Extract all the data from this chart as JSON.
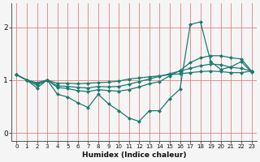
{
  "xlabel": "Humidex (Indice chaleur)",
  "background_color": "#f5f5f5",
  "grid_color": "#e08080",
  "line_color": "#1a7a6e",
  "x_values": [
    0,
    1,
    2,
    3,
    4,
    5,
    6,
    7,
    8,
    9,
    10,
    11,
    12,
    13,
    14,
    15,
    16,
    17,
    18,
    19,
    20,
    21,
    22,
    23
  ],
  "line1": [
    1.1,
    1.0,
    0.85,
    1.0,
    0.73,
    0.68,
    0.57,
    0.48,
    0.73,
    0.55,
    0.42,
    0.28,
    0.22,
    0.42,
    0.42,
    0.65,
    0.83,
    2.05,
    2.1,
    1.35,
    1.2,
    1.25,
    1.35,
    1.15
  ],
  "line2": [
    1.1,
    1.0,
    0.9,
    1.0,
    0.86,
    0.84,
    0.8,
    0.78,
    0.82,
    0.8,
    0.79,
    0.82,
    0.87,
    0.93,
    0.97,
    1.08,
    1.18,
    1.33,
    1.42,
    1.46,
    1.46,
    1.42,
    1.4,
    1.17
  ],
  "line3": [
    1.1,
    1.0,
    0.93,
    1.0,
    0.89,
    0.88,
    0.86,
    0.85,
    0.88,
    0.87,
    0.88,
    0.92,
    0.97,
    1.02,
    1.07,
    1.12,
    1.17,
    1.22,
    1.27,
    1.3,
    1.29,
    1.24,
    1.22,
    1.17
  ],
  "line4": [
    1.1,
    1.0,
    0.95,
    1.0,
    0.94,
    0.94,
    0.93,
    0.94,
    0.95,
    0.96,
    0.98,
    1.02,
    1.04,
    1.06,
    1.08,
    1.1,
    1.12,
    1.14,
    1.16,
    1.17,
    1.16,
    1.14,
    1.14,
    1.17
  ],
  "ylim": [
    -0.15,
    2.45
  ],
  "xlim": [
    -0.5,
    23.5
  ],
  "yticks": [
    0,
    1,
    2
  ],
  "xticks": [
    0,
    1,
    2,
    3,
    4,
    5,
    6,
    7,
    8,
    9,
    10,
    11,
    12,
    13,
    14,
    15,
    16,
    17,
    18,
    19,
    20,
    21,
    22,
    23
  ]
}
